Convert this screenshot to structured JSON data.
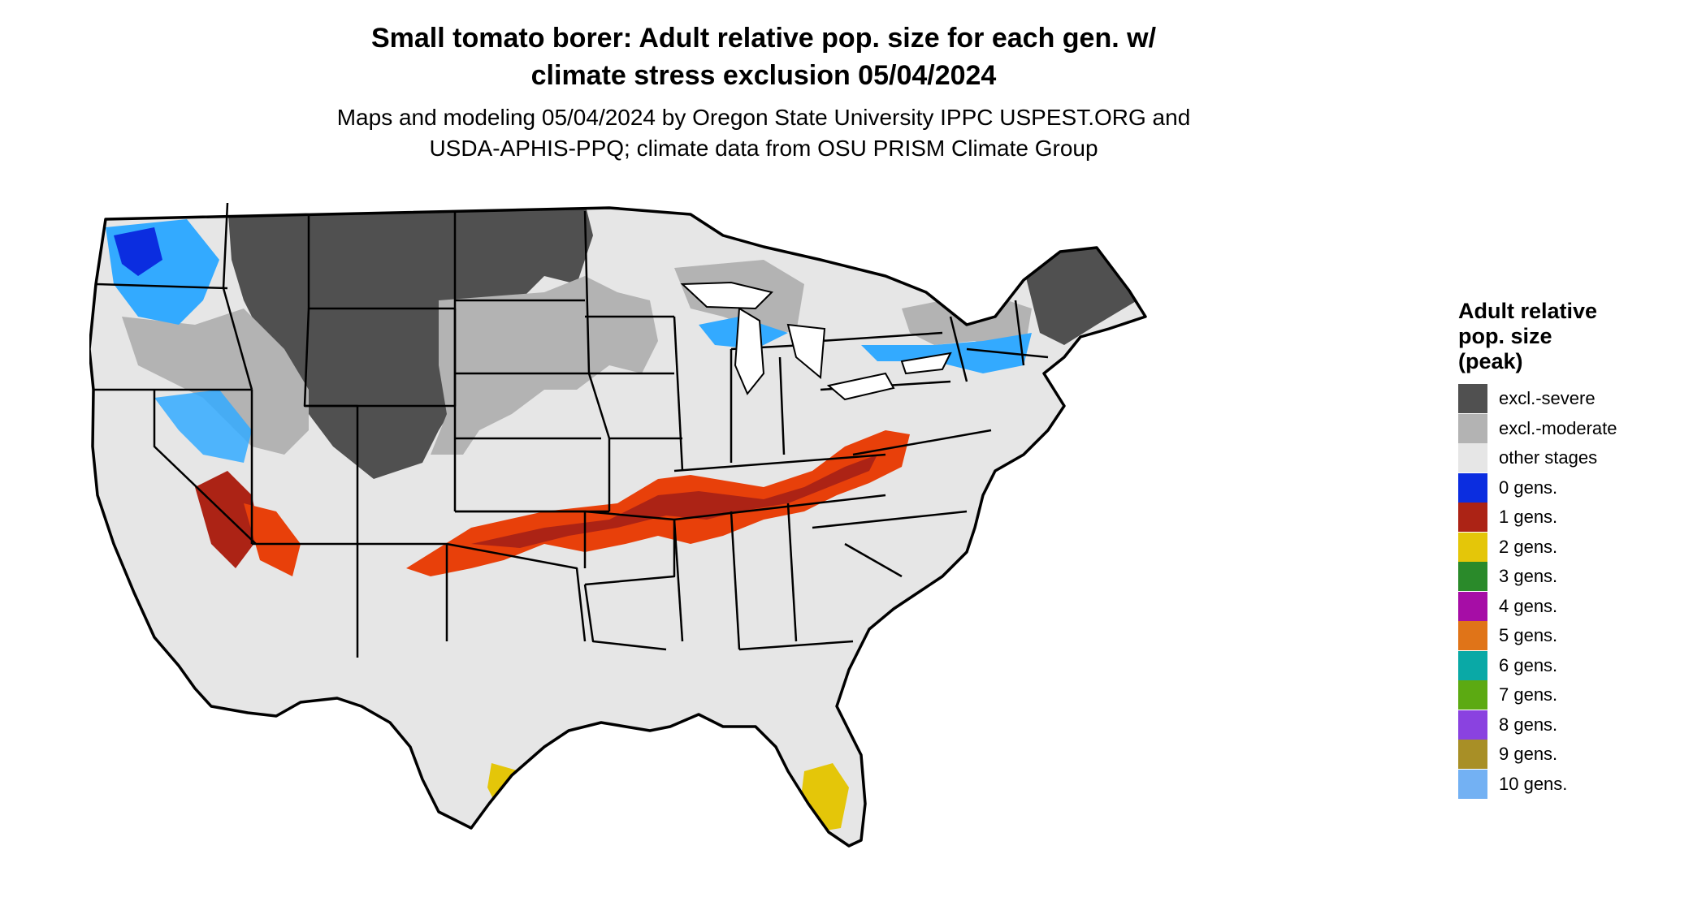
{
  "title": {
    "line1": "Small tomato borer: Adult relative pop. size for each gen. w/",
    "line2": "climate stress exclusion 05/04/2024"
  },
  "subtitle": {
    "line1": "Maps and modeling 05/04/2024 by Oregon State University IPPC USPEST.ORG and",
    "line2": "USDA-APHIS-PPQ; climate data from OSU PRISM Climate Group"
  },
  "legend": {
    "title_lines": [
      "Adult relative",
      "pop. size",
      "(peak)"
    ],
    "items": [
      {
        "label": "excl.-severe",
        "color": "#505050"
      },
      {
        "label": "excl.-moderate",
        "color": "#b3b3b3"
      },
      {
        "label": "other stages",
        "color": "#e6e6e6"
      },
      {
        "label": "0 gens.",
        "color": "#0b2de0"
      },
      {
        "label": "1 gens.",
        "color": "#ac2315"
      },
      {
        "label": "2 gens.",
        "color": "#e4c609"
      },
      {
        "label": "3 gens.",
        "color": "#2a8a2a"
      },
      {
        "label": "4 gens.",
        "color": "#a60da6"
      },
      {
        "label": "5 gens.",
        "color": "#e07418"
      },
      {
        "label": "6 gens.",
        "color": "#0aa9a6"
      },
      {
        "label": "7 gens.",
        "color": "#5caa12"
      },
      {
        "label": "8 gens.",
        "color": "#8a42e0"
      },
      {
        "label": "9 gens.",
        "color": "#a88f26"
      },
      {
        "label": "10 gens.",
        "color": "#73b1f3"
      }
    ]
  },
  "map_colors": {
    "background_fill": "#e6e6e6",
    "severe": "#505050",
    "moderate": "#b3b3b3",
    "cold_light": "#33aaff",
    "cold_dark": "#0b2de0",
    "gen1_dark": "#ac2315",
    "gen1_bright": "#e8400a",
    "gen2": "#e4c609",
    "border": "#000000"
  }
}
